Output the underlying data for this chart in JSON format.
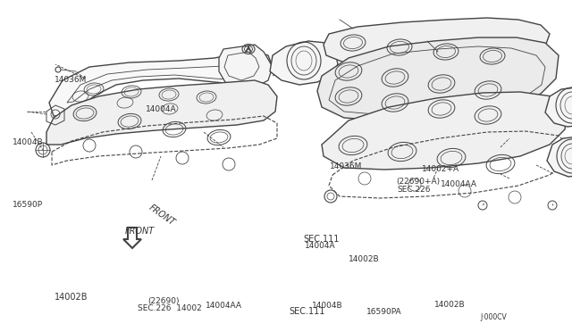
{
  "bg_color": "#ffffff",
  "line_color": "#444444",
  "text_color": "#333333",
  "labels": {
    "14002B_tl": [
      0.095,
      0.895,
      "14002B",
      7.0,
      "left"
    ],
    "SEC226_14002": [
      0.24,
      0.93,
      "SEC.226  14002",
      6.5,
      "left"
    ],
    "22690": [
      0.258,
      0.908,
      "(22690)",
      6.5,
      "left"
    ],
    "14004AA_top": [
      0.36,
      0.92,
      "14004AA",
      6.5,
      "left"
    ],
    "SEC111_top": [
      0.506,
      0.938,
      "SEC.111",
      7.0,
      "left"
    ],
    "16590P": [
      0.022,
      0.618,
      "16590P",
      6.5,
      "left"
    ],
    "14004B_left": [
      0.022,
      0.43,
      "14004B",
      6.5,
      "left"
    ],
    "14004A_mid": [
      0.255,
      0.33,
      "14004A",
      6.5,
      "left"
    ],
    "14036M_left": [
      0.095,
      0.24,
      "14036M",
      6.5,
      "left"
    ],
    "SEC111_right": [
      0.53,
      0.72,
      "SEC.111",
      7.0,
      "left"
    ],
    "SEC226_right": [
      0.695,
      0.57,
      "SEC.226",
      6.5,
      "left"
    ],
    "22690A": [
      0.693,
      0.547,
      "(22690+A)",
      6.5,
      "left"
    ],
    "14036M_right": [
      0.577,
      0.5,
      "14036M",
      6.5,
      "left"
    ],
    "14002A": [
      0.738,
      0.51,
      "14002+A",
      6.5,
      "left"
    ],
    "14004AA_right": [
      0.77,
      0.555,
      "14004AA",
      6.5,
      "left"
    ],
    "14004A_right": [
      0.533,
      0.74,
      "14004A",
      6.5,
      "left"
    ],
    "14002B_right": [
      0.61,
      0.782,
      "14002B",
      6.5,
      "left"
    ],
    "14004B_bot": [
      0.545,
      0.92,
      "14004B",
      6.5,
      "left"
    ],
    "16590PA": [
      0.64,
      0.94,
      "16590PA",
      6.5,
      "left"
    ],
    "14002B_bot": [
      0.76,
      0.918,
      "14002B",
      6.5,
      "left"
    ],
    "J000CV": [
      0.84,
      0.955,
      "J·000CV",
      5.5,
      "left"
    ],
    "FRONT": [
      0.218,
      0.695,
      "FRONT",
      7.0,
      "left"
    ]
  }
}
